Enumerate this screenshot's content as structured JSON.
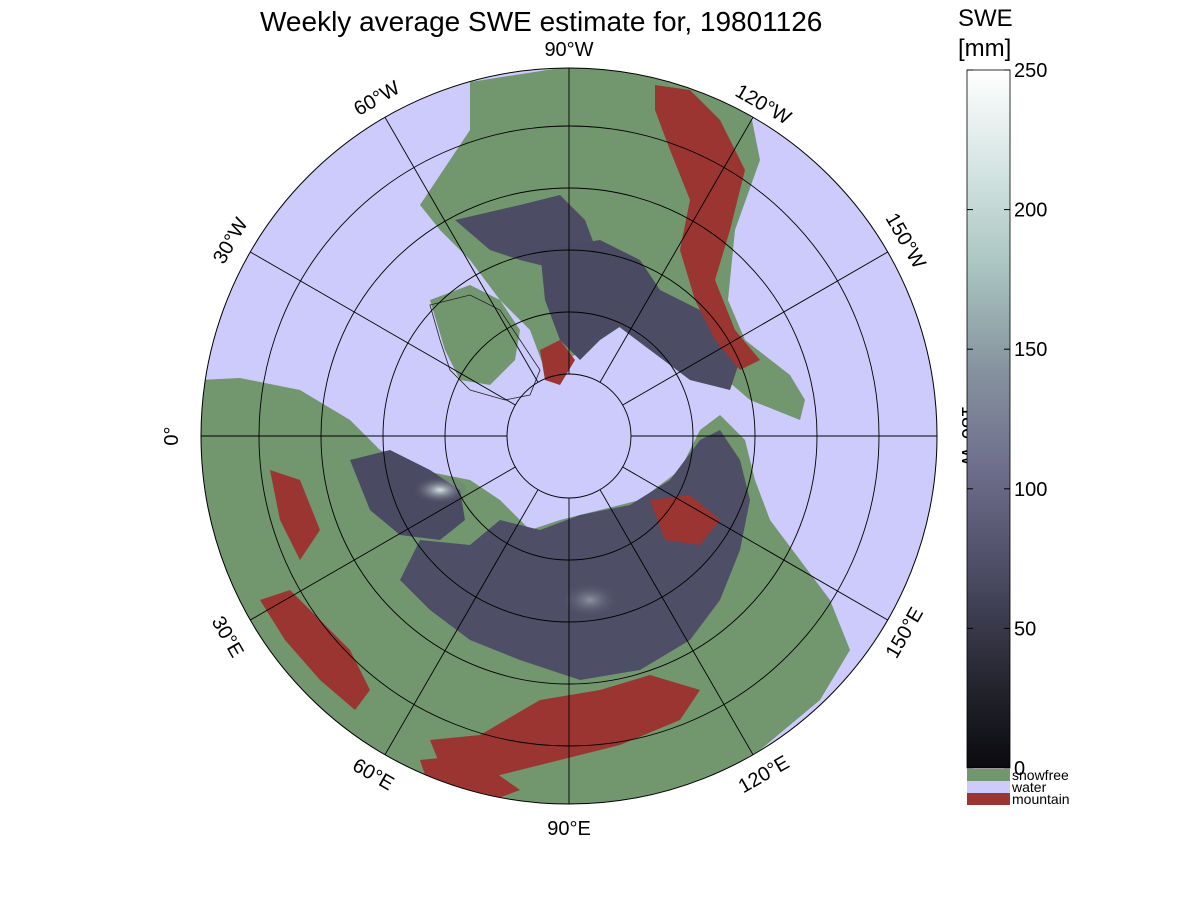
{
  "title": "Weekly average SWE estimate for, 19801126",
  "colorbar": {
    "title_line1": "SWE",
    "title_line2": "[mm]",
    "ticks": [
      "0",
      "50",
      "100",
      "150",
      "200",
      "250"
    ],
    "min": 0,
    "max": 250,
    "gradient_colors": [
      "#0a0a0f",
      "#2a2a36",
      "#4d4d66",
      "#6e6e8c",
      "#86939e",
      "#a9c4c0",
      "#d4e4e2",
      "#ffffff"
    ],
    "categories": [
      {
        "label": "snowfree",
        "color": "#72966e"
      },
      {
        "label": "water",
        "color": "#cccbfc"
      },
      {
        "label": "mountain",
        "color": "#9b3532"
      }
    ]
  },
  "map": {
    "projection": "north polar azimuthal",
    "ocean_color": "#cccbfc",
    "land_color": "#72966e",
    "mountain_color": "#9b3532",
    "snow_color": "#4a4a62",
    "longitude_labels": [
      "90°W",
      "120°W",
      "150°W",
      "180°W",
      "150°E",
      "120°E",
      "90°E",
      "60°E",
      "30°E",
      "0°",
      "30°W",
      "60°W"
    ]
  }
}
